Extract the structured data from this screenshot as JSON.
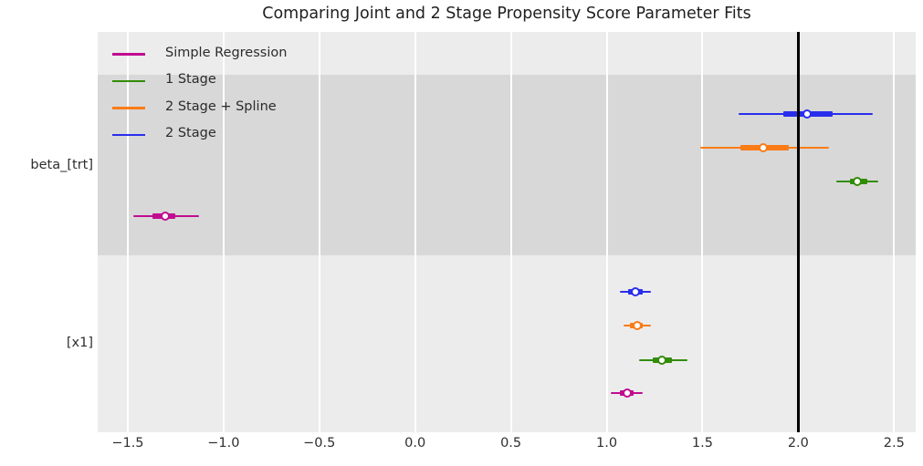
{
  "chart_data": {
    "type": "forest",
    "title": "Comparing Joint and 2 Stage Propensity Score Parameter Fits",
    "x_axis": {
      "lim": [
        -1.657,
        2.613
      ],
      "grid": true,
      "ticks": [
        {
          "value": -1.5,
          "label": "−1.5"
        },
        {
          "value": -1.0,
          "label": "−1.0"
        },
        {
          "value": -0.5,
          "label": "−0.5"
        },
        {
          "value": 0.0,
          "label": "0.0"
        },
        {
          "value": 0.5,
          "label": "0.5"
        },
        {
          "value": 1.0,
          "label": "1.0"
        },
        {
          "value": 1.5,
          "label": "1.5"
        },
        {
          "value": 2.0,
          "label": "2.0"
        },
        {
          "value": 2.5,
          "label": "2.5"
        }
      ]
    },
    "y_axis": {
      "categories": [
        "beta_[trt]",
        "[x1]"
      ]
    },
    "reference_line": {
      "x": 2.0,
      "color": "#000000"
    },
    "legend": {
      "position": "upper left",
      "items": [
        {
          "label": "Simple Regression",
          "color": "#c10c90"
        },
        {
          "label": "1 Stage",
          "color": "#328c06"
        },
        {
          "label": "2 Stage + Spline",
          "color": "#fa7c17"
        },
        {
          "label": "2 Stage",
          "color": "#2a2eec"
        }
      ]
    },
    "groups": [
      {
        "label": "beta_[trt]",
        "band": "dark",
        "rows": [
          {
            "series": "2 Stage",
            "color": "#2a2eec",
            "point": 2.05,
            "ci_thick": [
              1.92,
              2.18
            ],
            "ci_thin": [
              1.69,
              2.39
            ]
          },
          {
            "series": "2 Stage + Spline",
            "color": "#fa7c17",
            "point": 1.82,
            "ci_thick": [
              1.7,
              1.95
            ],
            "ci_thin": [
              1.49,
              2.16
            ]
          },
          {
            "series": "1 Stage",
            "color": "#328c06",
            "point": 2.31,
            "ci_thick": [
              2.27,
              2.36
            ],
            "ci_thin": [
              2.2,
              2.42
            ]
          },
          {
            "series": "Simple Regression",
            "color": "#c10c90",
            "point": -1.3,
            "ci_thick": [
              -1.37,
              -1.25
            ],
            "ci_thin": [
              -1.47,
              -1.13
            ]
          }
        ]
      },
      {
        "label": "[x1]",
        "band": "light",
        "rows": [
          {
            "series": "2 Stage",
            "color": "#2a2eec",
            "point": 1.15,
            "ci_thick": [
              1.11,
              1.19
            ],
            "ci_thin": [
              1.07,
              1.23
            ]
          },
          {
            "series": "2 Stage + Spline",
            "color": "#fa7c17",
            "point": 1.16,
            "ci_thick": [
              1.12,
              1.19
            ],
            "ci_thin": [
              1.09,
              1.23
            ]
          },
          {
            "series": "1 Stage",
            "color": "#328c06",
            "point": 1.29,
            "ci_thick": [
              1.24,
              1.34
            ],
            "ci_thin": [
              1.17,
              1.42
            ]
          },
          {
            "series": "Simple Regression",
            "color": "#c10c90",
            "point": 1.11,
            "ci_thick": [
              1.07,
              1.14
            ],
            "ci_thin": [
              1.02,
              1.19
            ]
          }
        ]
      }
    ],
    "colors": {
      "band_dark": "#d8d8d8",
      "band_light": "#ececec",
      "grid": "#ffffff",
      "text": "#2e2e2e"
    }
  }
}
